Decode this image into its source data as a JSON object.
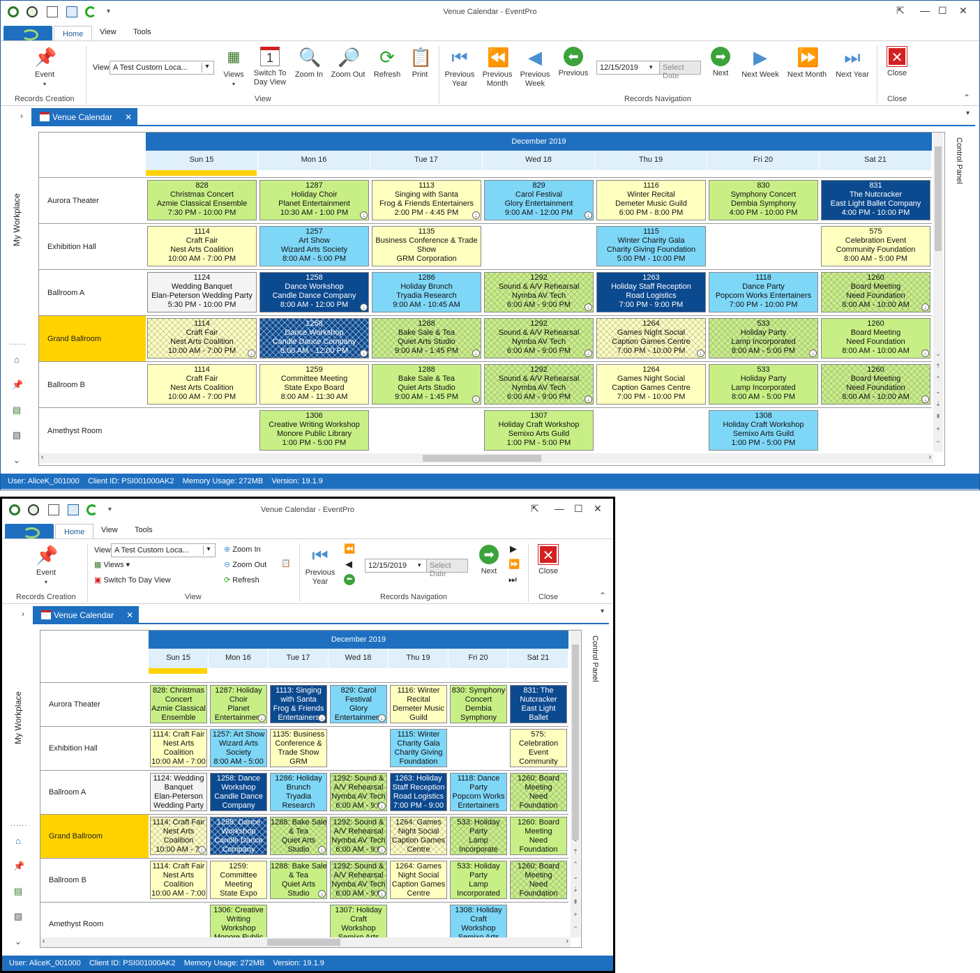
{
  "window_title": "Venue Calendar - EventPro",
  "ribbon_tabs": [
    "Home",
    "View",
    "Tools"
  ],
  "ribbon": {
    "event_label": "Event",
    "records_creation": "Records Creation",
    "view_label": "View",
    "view_value": "A Test Custom Loca...",
    "views": "Views",
    "switch_day_view": "Switch To Day View",
    "switch_day_view_a": "Switch To",
    "switch_day_view_b": "Day View",
    "zoom_in": "Zoom In",
    "zoom_out": "Zoom Out",
    "refresh": "Refresh",
    "print": "Print",
    "view_group": "View",
    "previous_year_a": "Previous",
    "previous_year_b": "Year",
    "previous_month_a": "Previous",
    "previous_month_b": "Month",
    "previous_week_a": "Previous",
    "previous_week_b": "Week",
    "previous": "Previous",
    "date_value": "12/15/2019",
    "select_date": "Select Date",
    "next": "Next",
    "next_week": "Next Week",
    "next_month": "Next Month",
    "next_year": "Next Year",
    "records_navigation": "Records Navigation",
    "close": "Close",
    "close_group": "Close"
  },
  "doc_tab": "Venue Calendar",
  "my_workplace": "My Workplace",
  "control_panel": "Control Panel",
  "calendar": {
    "month": "December 2019",
    "days": [
      "Sun 15",
      "Mon 16",
      "Tue 17",
      "Wed 18",
      "Thu 19",
      "Fri 20",
      "Sat 21"
    ],
    "rooms": [
      "Aurora Theater",
      "Exhibition Hall",
      "Ballroom A",
      "Grand Ballroom",
      "Ballroom B",
      "Amethyst Room"
    ]
  },
  "events_large": [
    {
      "row": 0,
      "col": 0,
      "c": "g",
      "lines": [
        "828",
        "Christmas Concert",
        "Azmie Classical Ensemble",
        "7:30 PM - 10:00 PM"
      ]
    },
    {
      "row": 0,
      "col": 1,
      "c": "g",
      "dn": 1,
      "lines": [
        "1287",
        "Holiday Choir",
        "Planet Entertainment",
        "10:30 AM - 1:00 PM"
      ]
    },
    {
      "row": 0,
      "col": 2,
      "c": "y",
      "dn": 1,
      "lines": [
        "1113",
        "Singing with Santa",
        "Frog & Friends Entertainers",
        "2:00 PM - 4:45 PM"
      ]
    },
    {
      "row": 0,
      "col": 3,
      "c": "b",
      "dn": 1,
      "lines": [
        "829",
        "Carol Festival",
        "Glory Entertainment",
        "9:00 AM - 12:00 PM"
      ]
    },
    {
      "row": 0,
      "col": 4,
      "c": "y",
      "lines": [
        "1116",
        "Winter Recital",
        "Demeter Music Guild",
        "6:00 PM - 8:00 PM"
      ]
    },
    {
      "row": 0,
      "col": 5,
      "c": "g",
      "lines": [
        "830",
        "Symphony Concert",
        "Dembia Symphony",
        "4:00 PM - 10:00 PM"
      ]
    },
    {
      "row": 0,
      "col": 6,
      "c": "d",
      "lines": [
        "831",
        "The Nutcracker",
        "East Light Ballet Company",
        "4:00 PM - 10:00 PM"
      ]
    },
    {
      "row": 1,
      "col": 0,
      "c": "y",
      "lines": [
        "1114",
        "Craft Fair",
        "Nest Arts Coalition",
        "10:00 AM - 7:00 PM"
      ]
    },
    {
      "row": 1,
      "col": 1,
      "c": "b",
      "lines": [
        "1257",
        "Art Show",
        "Wizard Arts Society",
        "8:00 AM - 5:00 PM"
      ]
    },
    {
      "row": 1,
      "col": 2,
      "c": "y",
      "lines": [
        "1135",
        "Business Conference & Trade",
        "Show",
        "GRM Corporation"
      ]
    },
    {
      "row": 1,
      "col": 4,
      "c": "b",
      "lines": [
        "1115",
        "Winter Charity Gala",
        "Charity Giving Foundation",
        "5:00 PM - 10:00 PM"
      ]
    },
    {
      "row": 1,
      "col": 6,
      "c": "y",
      "lines": [
        "575",
        "Celebration Event",
        "Community Foundation",
        "8:00 AM - 5:00 PM"
      ]
    },
    {
      "row": 2,
      "col": 0,
      "c": "w",
      "lines": [
        "1124",
        "Wedding Banquet",
        "Elan-Peterson Wedding Party",
        "5:30 PM - 10:00 PM"
      ]
    },
    {
      "row": 2,
      "col": 1,
      "c": "d",
      "dn": 1,
      "lines": [
        "1258",
        "Dance Workshop",
        "Candle Dance Company",
        "8:00 AM - 12:00 PM"
      ]
    },
    {
      "row": 2,
      "col": 2,
      "c": "b",
      "lines": [
        "1286",
        "Holiday Brunch",
        "Tryadia Research",
        "9:00 AM - 10:45 AM"
      ]
    },
    {
      "row": 2,
      "col": 3,
      "c": "g",
      "h": 1,
      "dn": 1,
      "lines": [
        "1292",
        "Sound & A/V Rehearsal",
        "Nymba AV Tech",
        "6:00 AM - 9:00 PM"
      ]
    },
    {
      "row": 2,
      "col": 4,
      "c": "d",
      "lines": [
        "1263",
        "Holiday Staff Reception",
        "Road Logistics",
        "7:00 PM - 9:00 PM"
      ]
    },
    {
      "row": 2,
      "col": 5,
      "c": "b",
      "lines": [
        "1118",
        "Dance Party",
        "Popcorn Works Entertainers",
        "7:00 PM - 10:00 PM"
      ]
    },
    {
      "row": 2,
      "col": 6,
      "c": "g",
      "h": 1,
      "dn": 1,
      "lines": [
        "1260",
        "Board Meeting",
        "Need Foundation",
        "8:00 AM - 10:00 AM"
      ]
    },
    {
      "row": 3,
      "col": 0,
      "c": "y",
      "h": 1,
      "dn": 1,
      "lines": [
        "1114",
        "Craft Fair",
        "Nest Arts Coalition",
        "10:00 AM - 7:00 PM"
      ]
    },
    {
      "row": 3,
      "col": 1,
      "c": "d",
      "h": 1,
      "dn": 1,
      "lines": [
        "1258",
        "Dance Workshop",
        "Candle Dance Company",
        "8:00 AM - 12:00 PM"
      ]
    },
    {
      "row": 3,
      "col": 2,
      "c": "g",
      "h": 1,
      "dn": 1,
      "lines": [
        "1288",
        "Bake Sale & Tea",
        "Quiet Arts Studio",
        "9:00 AM - 1:45 PM"
      ]
    },
    {
      "row": 3,
      "col": 3,
      "c": "g",
      "h": 1,
      "dn": 1,
      "lines": [
        "1292",
        "Sound & A/V Rehearsal",
        "Nymba AV Tech",
        "6:00 AM - 9:00 PM"
      ]
    },
    {
      "row": 3,
      "col": 4,
      "c": "y",
      "h": 1,
      "dn": 1,
      "lines": [
        "1264",
        "Games Night Social",
        "Caption Games Centre",
        "7:00 PM - 10:00 PM"
      ]
    },
    {
      "row": 3,
      "col": 5,
      "c": "g",
      "h": 1,
      "dn": 1,
      "lines": [
        "533",
        "Holiday Party",
        "Lamp Incorporated",
        "8:00 AM - 5:00 PM"
      ]
    },
    {
      "row": 3,
      "col": 6,
      "c": "g",
      "dn": 1,
      "lines": [
        "1260",
        "Board Meeting",
        "Need Foundation",
        "8:00 AM - 10:00 AM"
      ]
    },
    {
      "row": 4,
      "col": 0,
      "c": "y",
      "lines": [
        "1114",
        "Craft Fair",
        "Nest Arts Coalition",
        "10:00 AM - 7:00 PM"
      ]
    },
    {
      "row": 4,
      "col": 1,
      "c": "y",
      "lines": [
        "1259",
        "Committee Meeting",
        "State Expo Board",
        "8:00 AM - 11:30 AM"
      ]
    },
    {
      "row": 4,
      "col": 2,
      "c": "g",
      "dn": 1,
      "lines": [
        "1288",
        "Bake Sale & Tea",
        "Quiet Arts Studio",
        "9:00 AM - 1:45 PM"
      ]
    },
    {
      "row": 4,
      "col": 3,
      "c": "g",
      "h": 1,
      "dn": 1,
      "lines": [
        "1292",
        "Sound & A/V Rehearsal",
        "Nymba AV Tech",
        "6:00 AM - 9:00 PM"
      ]
    },
    {
      "row": 4,
      "col": 4,
      "c": "y",
      "lines": [
        "1264",
        "Games Night Social",
        "Caption Games Centre",
        "7:00 PM - 10:00 PM"
      ]
    },
    {
      "row": 4,
      "col": 5,
      "c": "g",
      "lines": [
        "533",
        "Holiday Party",
        "Lamp Incorporated",
        "8:00 AM - 5:00 PM"
      ]
    },
    {
      "row": 4,
      "col": 6,
      "c": "g",
      "h": 1,
      "dn": 1,
      "lines": [
        "1260",
        "Board Meeting",
        "Need Foundation",
        "8:00 AM - 10:00 AM"
      ]
    },
    {
      "row": 5,
      "col": 1,
      "c": "g",
      "lines": [
        "1306",
        "Creative Writing Workshop",
        "Monore Public Library",
        "1:00 PM - 5:00 PM"
      ]
    },
    {
      "row": 5,
      "col": 3,
      "c": "g",
      "lines": [
        "1307",
        "Holiday Craft Workshop",
        "Semixo Arts Guild",
        "1:00 PM - 5:00 PM"
      ]
    },
    {
      "row": 5,
      "col": 5,
      "c": "b",
      "lines": [
        "1308",
        "Holiday Craft Workshop",
        "Semixo Arts Guild",
        "1:00 PM - 5:00 PM"
      ]
    }
  ],
  "events_small": [
    {
      "row": 0,
      "col": 0,
      "c": "g",
      "lines": [
        "828: Christmas",
        "Concert",
        "Azmie Classical",
        "Ensemble"
      ]
    },
    {
      "row": 0,
      "col": 1,
      "c": "g",
      "dn": 1,
      "lines": [
        "1287: Holiday",
        "Choir",
        "Planet",
        "Entertainment"
      ]
    },
    {
      "row": 0,
      "col": 2,
      "c": "d",
      "dn": 1,
      "lines": [
        "1113: Singing",
        "with Santa",
        "Frog & Friends",
        "Entertainers"
      ]
    },
    {
      "row": 0,
      "col": 3,
      "c": "b",
      "dn": 1,
      "lines": [
        "829: Carol",
        "Festival",
        "Glory",
        "Entertainment"
      ]
    },
    {
      "row": 0,
      "col": 4,
      "c": "y",
      "lines": [
        "1116: Winter",
        "Recital",
        "Demeter Music",
        "Guild"
      ]
    },
    {
      "row": 0,
      "col": 5,
      "c": "g",
      "lines": [
        "830: Symphony",
        "Concert",
        "Dembia",
        "Symphony"
      ]
    },
    {
      "row": 0,
      "col": 6,
      "c": "d",
      "lines": [
        "831: The",
        "Nutcracker",
        "East Light",
        "Ballet"
      ]
    },
    {
      "row": 1,
      "col": 0,
      "c": "y",
      "lines": [
        "1114: Craft Fair",
        "Nest Arts",
        "Coalition",
        "10:00 AM - 7:00"
      ]
    },
    {
      "row": 1,
      "col": 1,
      "c": "b",
      "lines": [
        "1257: Art Show",
        "Wizard Arts",
        "Society",
        "8:00 AM - 5:00"
      ]
    },
    {
      "row": 1,
      "col": 2,
      "c": "y",
      "lines": [
        "1135: Business",
        "Conference &",
        "Trade Show",
        "GRM"
      ]
    },
    {
      "row": 1,
      "col": 4,
      "c": "b",
      "lines": [
        "1115: Winter",
        "Charity Gala",
        "Charity Giving",
        "Foundation"
      ]
    },
    {
      "row": 1,
      "col": 6,
      "c": "y",
      "lines": [
        "575:",
        "Celebration",
        "Event",
        "Community"
      ]
    },
    {
      "row": 2,
      "col": 0,
      "c": "w",
      "lines": [
        "1124: Wedding",
        "Banquet",
        "Elan-Peterson",
        "Wedding Party"
      ]
    },
    {
      "row": 2,
      "col": 1,
      "c": "d",
      "lines": [
        "1258: Dance",
        "Workshop",
        "Candle Dance",
        "Company"
      ]
    },
    {
      "row": 2,
      "col": 2,
      "c": "b",
      "lines": [
        "1286: Holiday",
        "Brunch",
        "Tryadia",
        "Research"
      ]
    },
    {
      "row": 2,
      "col": 3,
      "c": "g",
      "h": 1,
      "dn": 1,
      "lines": [
        "1292: Sound &",
        "A/V Rehearsal",
        "Nymba AV Tech",
        "6:00 AM - 9:0"
      ]
    },
    {
      "row": 2,
      "col": 4,
      "c": "d",
      "lines": [
        "1263: Holiday",
        "Staff Reception",
        "Road Logistics",
        "7:00 PM - 9:00"
      ]
    },
    {
      "row": 2,
      "col": 5,
      "c": "b",
      "lines": [
        "1118: Dance",
        "Party",
        "Popcorn Works",
        "Entertainers"
      ]
    },
    {
      "row": 2,
      "col": 6,
      "c": "g",
      "h": 1,
      "lines": [
        "1260: Board",
        "Meeting",
        "Need",
        "Foundation"
      ]
    },
    {
      "row": 3,
      "col": 0,
      "c": "y",
      "h": 1,
      "dn": 1,
      "lines": [
        "1114: Craft Fair",
        "Nest Arts",
        "Coalition",
        "10:00 AM - 7:"
      ]
    },
    {
      "row": 3,
      "col": 1,
      "c": "d",
      "h": 1,
      "lines": [
        "1258: Dance",
        "Workshop",
        "Candle Dance",
        "Company"
      ]
    },
    {
      "row": 3,
      "col": 2,
      "c": "g",
      "h": 1,
      "dn": 1,
      "lines": [
        "1288: Bake Sale",
        "& Tea",
        "Quiet Arts",
        "Studio"
      ]
    },
    {
      "row": 3,
      "col": 3,
      "c": "g",
      "h": 1,
      "dn": 1,
      "lines": [
        "1292: Sound &",
        "A/V Rehearsal",
        "Nymba AV Tech",
        "6:00 AM - 9:0"
      ]
    },
    {
      "row": 3,
      "col": 4,
      "c": "y",
      "h": 1,
      "lines": [
        "1264: Games",
        "Night Social",
        "Caption Games",
        "Centre"
      ]
    },
    {
      "row": 3,
      "col": 5,
      "c": "g",
      "h": 1,
      "lines": [
        "533: Holiday",
        "Party",
        "Lamp",
        "Incorporate"
      ]
    },
    {
      "row": 3,
      "col": 6,
      "c": "g",
      "lines": [
        "1260: Board",
        "Meeting",
        "Need",
        "Foundation"
      ]
    },
    {
      "row": 4,
      "col": 0,
      "c": "y",
      "lines": [
        "1114: Craft Fair",
        "Nest Arts",
        "Coalition",
        "10:00 AM - 7:00"
      ]
    },
    {
      "row": 4,
      "col": 1,
      "c": "y",
      "lines": [
        "1259:",
        "Committee",
        "Meeting",
        "State Expo"
      ]
    },
    {
      "row": 4,
      "col": 2,
      "c": "g",
      "dn": 1,
      "lines": [
        "1288: Bake Sale",
        "& Tea",
        "Quiet Arts",
        "Studio"
      ]
    },
    {
      "row": 4,
      "col": 3,
      "c": "g",
      "h": 1,
      "dn": 1,
      "lines": [
        "1292: Sound &",
        "A/V Rehearsal",
        "Nymba AV Tech",
        "6:00 AM - 9:0"
      ]
    },
    {
      "row": 4,
      "col": 4,
      "c": "y",
      "lines": [
        "1264: Games",
        "Night Social",
        "Caption Games",
        "Centre"
      ]
    },
    {
      "row": 4,
      "col": 5,
      "c": "g",
      "lines": [
        "533: Holiday",
        "Party",
        "Lamp",
        "Incorporated"
      ]
    },
    {
      "row": 4,
      "col": 6,
      "c": "g",
      "h": 1,
      "lines": [
        "1260: Board",
        "Meeting",
        "Need",
        "Foundation"
      ]
    },
    {
      "row": 5,
      "col": 1,
      "c": "g",
      "lines": [
        "1306: Creative",
        "Writing",
        "Workshop",
        "Monore Public"
      ]
    },
    {
      "row": 5,
      "col": 3,
      "c": "g",
      "lines": [
        "1307: Holiday",
        "Craft",
        "Workshop",
        "Semixo Arts"
      ]
    },
    {
      "row": 5,
      "col": 5,
      "c": "b",
      "lines": [
        "1308: Holiday",
        "Craft",
        "Workshop",
        "Semixo Arts"
      ]
    }
  ],
  "status_bar": "User: AliceK_001000    Client ID: PSI001000AK2    Memory Usage: 272MB    Version: 19.1.9"
}
